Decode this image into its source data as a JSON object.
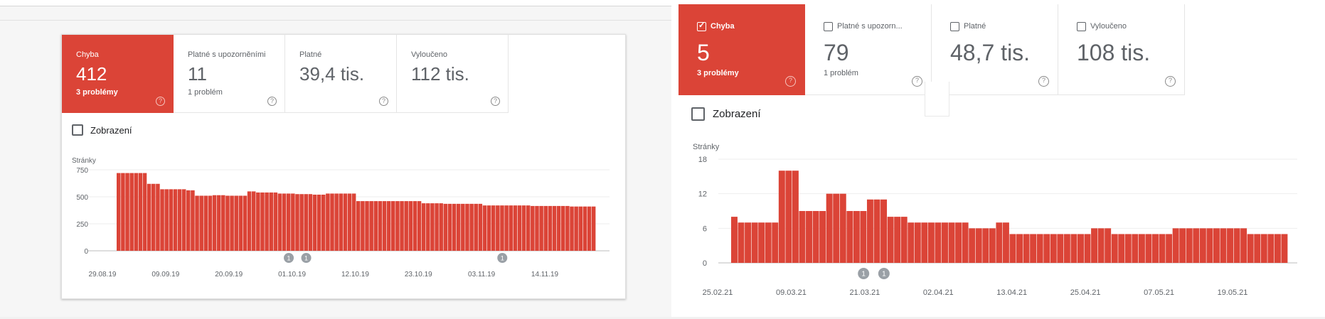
{
  "left": {
    "tabs": [
      {
        "label": "Chyba",
        "value": "412",
        "sub": "3 problémy",
        "active": true
      },
      {
        "label": "Platné s upozorněními",
        "value": "11",
        "sub": "1 problém",
        "active": false
      },
      {
        "label": "Platné",
        "value": "39,4 tis.",
        "sub": "",
        "active": false
      },
      {
        "label": "Vyloučeno",
        "value": "112 tis.",
        "sub": "",
        "active": false
      }
    ],
    "impressions_label": "Zobrazení",
    "help_glyph": "?"
  },
  "right": {
    "tabs": [
      {
        "label": "Chyba",
        "value": "5",
        "sub": "3 problémy",
        "active": true,
        "checked": true
      },
      {
        "label": "Platné s upozorn...",
        "value": "79",
        "sub": "1 problém",
        "active": false,
        "checked": false
      },
      {
        "label": "Platné",
        "value": "48,7 tis.",
        "sub": "",
        "active": false,
        "checked": false
      },
      {
        "label": "Vyloučeno",
        "value": "108 tis.",
        "sub": "",
        "active": false,
        "checked": false
      }
    ],
    "impressions_label": "Zobrazení",
    "help_glyph": "?",
    "check_glyph": "✓"
  },
  "colors": {
    "error_red": "#db4437",
    "marker_grey": "#9aa0a6"
  },
  "chart_data": [
    {
      "type": "bar",
      "ylabel": "Stránky",
      "ylim": [
        0,
        750
      ],
      "yticks": [
        "750",
        "500",
        "250",
        "0"
      ],
      "ytick_values": [
        750,
        500,
        250,
        0
      ],
      "xtick_labels": [
        "29.08.19",
        "09.09.19",
        "20.09.19",
        "01.10.19",
        "12.10.19",
        "23.10.19",
        "03.11.19",
        "14.11.19"
      ],
      "annotations": [
        "1",
        "1",
        "1"
      ],
      "annotation_positions": [
        39,
        43,
        88
      ],
      "values": [
        720,
        720,
        720,
        720,
        720,
        720,
        720,
        620,
        620,
        620,
        570,
        570,
        570,
        570,
        570,
        570,
        560,
        560,
        510,
        510,
        510,
        510,
        515,
        515,
        515,
        510,
        510,
        510,
        510,
        510,
        550,
        550,
        540,
        540,
        540,
        540,
        540,
        530,
        530,
        530,
        530,
        525,
        525,
        525,
        525,
        520,
        520,
        520,
        530,
        530,
        530,
        530,
        530,
        530,
        530,
        460,
        460,
        460,
        460,
        460,
        460,
        460,
        460,
        460,
        460,
        460,
        460,
        460,
        460,
        460,
        440,
        440,
        440,
        440,
        440,
        435,
        435,
        435,
        435,
        435,
        435,
        435,
        435,
        435,
        420,
        420,
        420,
        420,
        420,
        420,
        420,
        420,
        420,
        420,
        420,
        415,
        415,
        415,
        415,
        415,
        415,
        415,
        415,
        415,
        410,
        410,
        410,
        410,
        410,
        410
      ]
    },
    {
      "type": "bar",
      "ylabel": "Stránky",
      "ylim": [
        0,
        18
      ],
      "yticks": [
        "18",
        "12",
        "6",
        "0"
      ],
      "ytick_values": [
        18,
        12,
        6,
        0
      ],
      "xtick_labels": [
        "25.02.21",
        "09.03.21",
        "21.03.21",
        "02.04.21",
        "13.04.21",
        "25.04.21",
        "07.05.21",
        "19.05.21"
      ],
      "annotations": [
        "1",
        "1"
      ],
      "annotation_positions": [
        19,
        22
      ],
      "values": [
        8,
        7,
        7,
        7,
        7,
        7,
        7,
        16,
        16,
        16,
        9,
        9,
        9,
        9,
        12,
        12,
        12,
        9,
        9,
        9,
        11,
        11,
        11,
        8,
        8,
        8,
        7,
        7,
        7,
        7,
        7,
        7,
        7,
        7,
        7,
        6,
        6,
        6,
        6,
        7,
        7,
        5,
        5,
        5,
        5,
        5,
        5,
        5,
        5,
        5,
        5,
        5,
        5,
        6,
        6,
        6,
        5,
        5,
        5,
        5,
        5,
        5,
        5,
        5,
        5,
        6,
        6,
        6,
        6,
        6,
        6,
        6,
        6,
        6,
        6,
        6,
        5,
        5,
        5,
        5,
        5,
        5
      ]
    }
  ]
}
